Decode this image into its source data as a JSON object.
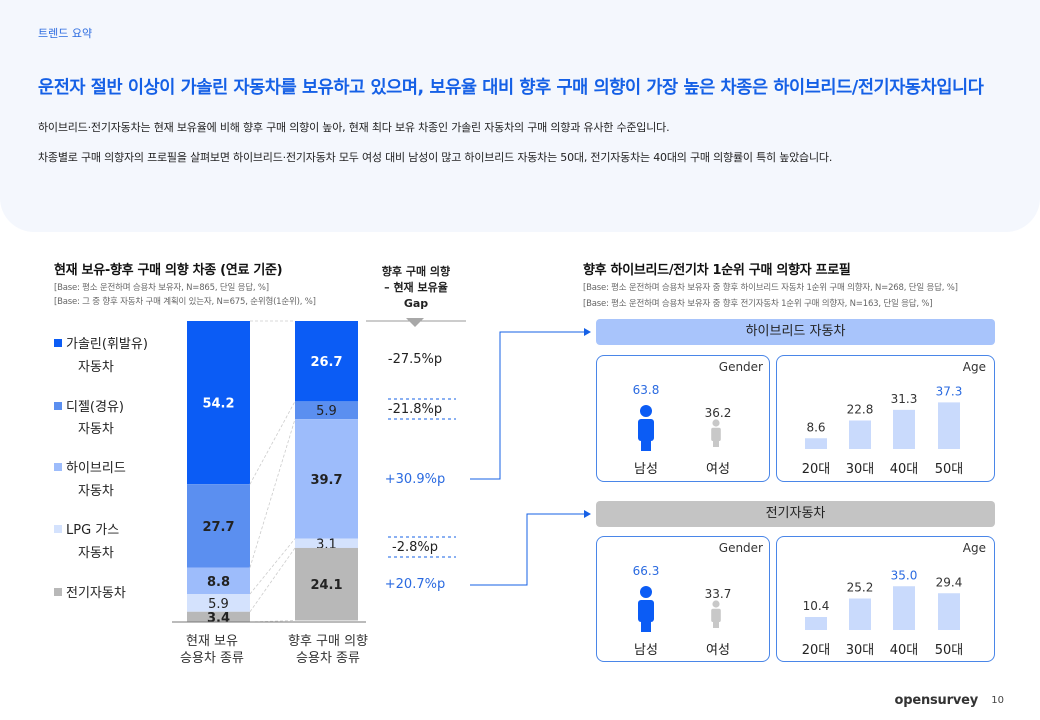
{
  "header": {
    "tag": "트렌드 요약",
    "headline": "운전자 절반 이상이 가솔린 자동차를 보유하고 있으며, 보유율 대비 향후 구매 의향이 가장 높은 차종은 하이브리드/전기자동차입니다",
    "body1": "하이브리드·전기자동차는  현재 보유율에 비해 향후 구매 의향이 높아, 현재 최다 보유 차종인 가솔린 자동차의 구매 의향과 유사한 수준입니다.",
    "body2": "차종별로 구매 의향자의 프로필을 살펴보면 하이브리드·전기자동차  모두 여성 대비 남성이 많고 하이브리드 자동차는 50대, 전기자동차는 40대의 구매 의향률이 특히 높았습니다."
  },
  "left": {
    "title": "현재 보유-향후 구매 의향 차종 (연료 기준)",
    "base1": "[Base: 평소 운전하며 승용차 보유자, N=865, 단일 응답, %]",
    "base2": "[Base: 그 중 향후 자동차 구매 계획이 있는자, N=675, 순위형(1순위), %]",
    "gap_header": [
      "향후 구매 의향",
      "– 현재 보유율",
      "Gap"
    ],
    "legend": [
      {
        "line1": "가솔린(휘발유)",
        "line2": "자동차",
        "color": "#0b5cf5"
      },
      {
        "line1": "디젤(경유)",
        "line2": "자동차",
        "color": "#5b8ff0"
      },
      {
        "line1": "하이브리드",
        "line2": "자동차",
        "color": "#9dbcfb"
      },
      {
        "line1": "LPG 가스",
        "line2": "자동차",
        "color": "#d4e2fd"
      },
      {
        "line1": "전기자동차",
        "line2": "",
        "color": "#b8b8b8"
      }
    ],
    "x_labels": [
      [
        "현재 보유",
        "승용차 종류"
      ],
      [
        "향후 구매 의향",
        "승용차 종류"
      ]
    ],
    "gaps": [
      "-27.5%p",
      "-21.8%p",
      "+30.9%p",
      "-2.8%p",
      "+20.7%p"
    ]
  },
  "chart_data": {
    "type": "bar",
    "stacked": true,
    "categories": [
      "현재 보유 승용차 종류",
      "향후 구매 의향 승용차 종류"
    ],
    "series": [
      {
        "name": "가솔린(휘발유) 자동차",
        "values": [
          54.2,
          26.7
        ],
        "color": "#0b5cf5"
      },
      {
        "name": "디젤(경유) 자동차",
        "values": [
          27.7,
          5.9
        ],
        "color": "#5b8ff0"
      },
      {
        "name": "하이브리드 자동차",
        "values": [
          8.8,
          39.7
        ],
        "color": "#9dbcfb"
      },
      {
        "name": "LPG 가스 자동차",
        "values": [
          5.9,
          3.1
        ],
        "color": "#d4e2fd"
      },
      {
        "name": "전기자동차",
        "values": [
          3.4,
          24.1
        ],
        "color": "#b8b8b8"
      }
    ],
    "ylim": [
      0,
      100
    ]
  },
  "right": {
    "title": "향후 하이브리드/전기차 1순위 구매 의향자 프로필",
    "base1": "[Base: 평소 운전하며 승용차 보유자 중 향후 하이브리드 자동차 1순위 구매 의향자, N=268, 단일 응답, %]",
    "base2": "[Base: 평소 운전하며 승용차 보유자 중 향후 전기자동차 1순위 구매 의향자, N=163, 단일 응답, %]",
    "gender_label": "Gender",
    "age_label": "Age",
    "male": "남성",
    "female": "여성",
    "age_cats": [
      "20대",
      "30대",
      "40대",
      "50대"
    ],
    "profiles": [
      {
        "name": "하이브리드 자동차",
        "head_color": "#a8c4fb",
        "male": "63.8",
        "female": "36.2",
        "ages": [
          "8.6",
          "22.8",
          "31.3",
          "37.3"
        ],
        "age_vals": [
          8.6,
          22.8,
          31.3,
          37.3
        ],
        "max_idx": 3
      },
      {
        "name": "전기자동차",
        "head_color": "#c4c4c4",
        "male": "66.3",
        "female": "33.7",
        "ages": [
          "10.4",
          "25.2",
          "35.0",
          "29.4"
        ],
        "age_vals": [
          10.4,
          25.2,
          35.0,
          29.4
        ],
        "max_idx": 2
      }
    ]
  },
  "footer": {
    "logo": "opensurvey",
    "page": "10"
  },
  "colors": {
    "accent": "#1560e6",
    "box_border": "#4a86e8",
    "highlight": "#2a6ae0"
  }
}
